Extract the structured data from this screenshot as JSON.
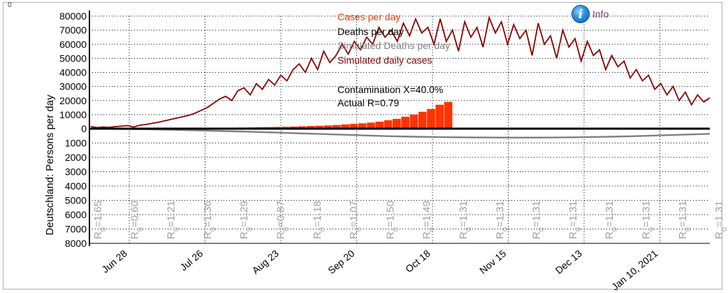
{
  "ui": {
    "corner_mark": "0",
    "info_label": "Info",
    "colors": {
      "cases": "#ff3300",
      "deaths": "#000000",
      "sim_deaths": "#808080",
      "sim_cases": "#8b0000",
      "r0_label": "#a0a0a0"
    }
  },
  "chart_data": {
    "type": "line",
    "ylabel": "Deutschland: Persons per day",
    "y_ticks_up": [
      "80000",
      "70000",
      "60000",
      "50000",
      "40000",
      "30000",
      "20000",
      "10000",
      "0"
    ],
    "y_ticks_down": [
      "1000",
      "2000",
      "3000",
      "4000",
      "5000",
      "6000",
      "7000",
      "8000"
    ],
    "ylim_up": [
      0,
      80000
    ],
    "ylim_down": [
      0,
      8000
    ],
    "x_ticks": [
      "Jun 28",
      "Jul 26",
      "Aug 23",
      "Sep 20",
      "Oct 18",
      "Nov 15",
      "Dec 13",
      "Jan 10, 2021"
    ],
    "legend": [
      "Cases per day",
      "Deaths per day",
      "Simulated Deaths per day",
      "Simulated daily cases"
    ],
    "legend_placement": "top-center",
    "annotations": [
      "Contamination X=40.0%",
      "Actual R=0.79"
    ],
    "grid": true,
    "r0_values": [
      "1.65",
      "0.60",
      "1.21",
      "1.36",
      "1.29",
      "0.87",
      "1.18",
      "1.07",
      "1.50",
      "1.49",
      "1.31",
      "1.31",
      "1.31",
      "1.31",
      "1.31",
      "1.31",
      "1.31",
      "1.31"
    ],
    "series": [
      {
        "name": "Cases per day",
        "values": [
          300,
          350,
          400,
          380,
          420,
          450,
          430,
          460,
          500,
          480,
          520,
          560,
          600,
          620,
          680,
          700,
          760,
          820,
          900,
          1000,
          1100,
          1200,
          1300,
          1500,
          1700,
          1900,
          2100,
          2300,
          2600,
          3000,
          3400,
          3800,
          4300,
          5000,
          6000,
          7000,
          8500,
          10000,
          12000,
          14000,
          17000,
          19000
        ]
      },
      {
        "name": "Simulated daily cases",
        "values": [
          1500,
          800,
          1200,
          900,
          1500,
          1800,
          2200,
          1200,
          2500,
          3000,
          3800,
          4500,
          5500,
          6500,
          7500,
          8500,
          9500,
          11000,
          13000,
          15000,
          18000,
          21000,
          23000,
          20000,
          27000,
          29000,
          24000,
          32000,
          28000,
          35000,
          31000,
          38000,
          34000,
          42000,
          46000,
          40000,
          50000,
          42000,
          55000,
          47000,
          52000,
          60000,
          53000,
          62000,
          56000,
          65000,
          60000,
          72000,
          65000,
          70000,
          62000,
          75000,
          66000,
          78000,
          68000,
          72000,
          60000,
          78000,
          62000,
          70000,
          55000,
          76000,
          65000,
          72000,
          58000,
          79000,
          68000,
          76000,
          60000,
          74000,
          64000,
          70000,
          52000,
          75000,
          60000,
          66000,
          50000,
          70000,
          58000,
          64000,
          48000,
          62000,
          52000,
          56000,
          42000,
          52000,
          44000,
          48000,
          36000,
          42000,
          34000,
          38000,
          28000,
          32000,
          24000,
          30000,
          20000,
          26000,
          17000,
          24000,
          19000,
          22000
        ]
      },
      {
        "name": "Simulated Deaths per day",
        "values": [
          0,
          20,
          40,
          80,
          120,
          170,
          220,
          280,
          340,
          400,
          460,
          520,
          560,
          590,
          610,
          620,
          625,
          620,
          600,
          570,
          530,
          480,
          420,
          360
        ]
      }
    ]
  }
}
